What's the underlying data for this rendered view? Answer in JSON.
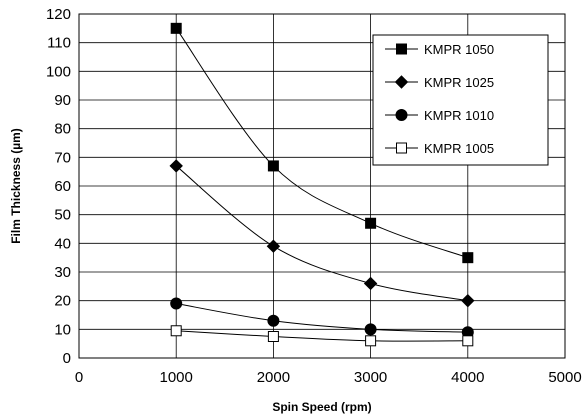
{
  "chart_data": {
    "type": "line",
    "title": "",
    "xlabel": "Spin Speed (rpm)",
    "ylabel": "Film Thickness (µm)",
    "xlim": [
      0,
      5000
    ],
    "ylim": [
      0,
      120
    ],
    "xticks": [
      0,
      1000,
      2000,
      3000,
      4000,
      5000
    ],
    "yticks": [
      0,
      10,
      20,
      30,
      40,
      50,
      60,
      70,
      80,
      90,
      100,
      110,
      120
    ],
    "grid": true,
    "legend": {
      "position": "top-right"
    },
    "x": [
      1000,
      2000,
      3000,
      4000
    ],
    "series": [
      {
        "name": "KMPR 1050",
        "marker": "square-filled",
        "values": [
          115,
          67,
          47,
          35
        ]
      },
      {
        "name": "KMPR 1025",
        "marker": "diamond-filled",
        "values": [
          67,
          39,
          26,
          20
        ]
      },
      {
        "name": "KMPR 1010",
        "marker": "circle-filled",
        "values": [
          19,
          13,
          10,
          9
        ]
      },
      {
        "name": "KMPR 1005",
        "marker": "square-open",
        "values": [
          9.5,
          7.5,
          6,
          6
        ]
      }
    ]
  },
  "colors": {
    "line": "#000000",
    "background": "#ffffff"
  }
}
